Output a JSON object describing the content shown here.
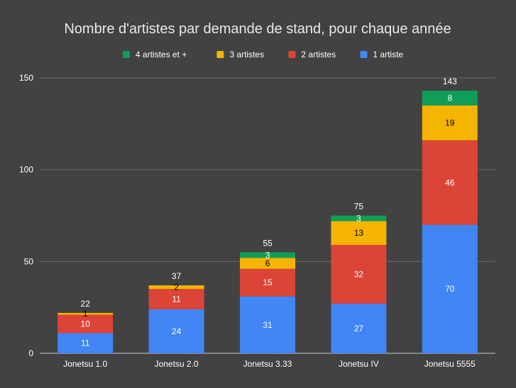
{
  "chart_data": {
    "type": "bar",
    "stacked": true,
    "title": "Nombre d'artistes par demande de stand, pour chaque année",
    "xlabel": "",
    "ylabel": "",
    "ylim": [
      0,
      150
    ],
    "yticks": [
      0,
      50,
      100,
      150
    ],
    "grid": true,
    "legend_position": "top",
    "categories": [
      "Jonetsu 1.0",
      "Jonetsu 2.0",
      "Jonetsu 3.33",
      "Jonetsu IV",
      "Jonetsu 5555"
    ],
    "series": [
      {
        "name": "1 artiste",
        "color": "#4285f4",
        "values": [
          11,
          24,
          31,
          27,
          70
        ],
        "label_color": "#ffffff"
      },
      {
        "name": "2 artistes",
        "color": "#db4437",
        "values": [
          10,
          11,
          15,
          32,
          46
        ],
        "label_color": "#ffffff"
      },
      {
        "name": "3 artistes",
        "color": "#f4b400",
        "values": [
          1,
          2,
          6,
          13,
          19
        ],
        "label_color": "#000000"
      },
      {
        "name": "4 artistes et +",
        "color": "#0f9d58",
        "values": [
          0,
          0,
          3,
          3,
          8
        ],
        "label_color": "#ffffff"
      }
    ],
    "legend_order": [
      "4 artistes et +",
      "3 artistes",
      "2 artistes",
      "1 artiste"
    ],
    "totals": [
      22,
      37,
      55,
      75,
      143
    ]
  },
  "colors": {
    "background": "#424242",
    "grid": "#6a6a6a",
    "baseline": "#cccccc"
  }
}
